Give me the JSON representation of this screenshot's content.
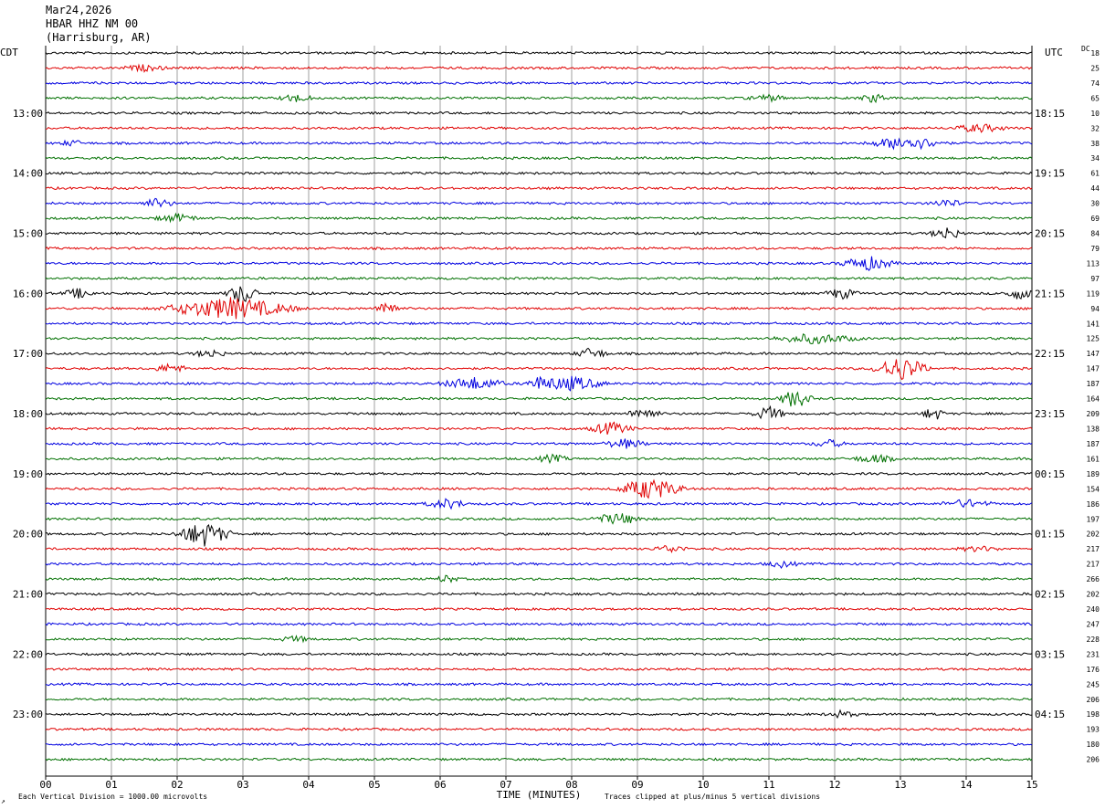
{
  "header": {
    "date": "Mar24,2026",
    "station": "HBAR HHZ NM 00",
    "location": "(Harrisburg, AR)"
  },
  "chart_data": {
    "type": "line",
    "left_axis_label": "CDT",
    "right_axis_label": "UTC",
    "dc_label": "DC",
    "xlabel": "TIME (MINUTES)",
    "x_ticks": [
      "00",
      "01",
      "02",
      "03",
      "04",
      "05",
      "06",
      "07",
      "08",
      "09",
      "10",
      "11",
      "12",
      "13",
      "14",
      "15"
    ],
    "xlim": [
      0,
      15
    ],
    "trace_colors": [
      "#000000",
      "#e00000",
      "#0000e0",
      "#007000"
    ],
    "left_time_labels": [
      "13:00",
      "14:00",
      "15:00",
      "16:00",
      "17:00",
      "18:00",
      "19:00",
      "20:00",
      "21:00",
      "22:00",
      "23:00"
    ],
    "right_time_labels": [
      "18:15",
      "19:15",
      "20:15",
      "21:15",
      "22:15",
      "23:15",
      "00:15",
      "01:15",
      "02:15",
      "03:15",
      "04:15"
    ],
    "dc_offsets": [
      18,
      25,
      74,
      65,
      10,
      32,
      38,
      34,
      61,
      44,
      30,
      69,
      84,
      79,
      113,
      97,
      119,
      94,
      141,
      125,
      147,
      147,
      187,
      164,
      209,
      138,
      187,
      161,
      189,
      154,
      186,
      197,
      202,
      217,
      217,
      266,
      202,
      240,
      247,
      228,
      231,
      176,
      245,
      206,
      198,
      193,
      180,
      206
    ],
    "events": [
      {
        "trace": 1,
        "minute": 1.5,
        "amp": 0.35,
        "dur": 0.4
      },
      {
        "trace": 3,
        "minute": 3.8,
        "amp": 0.5,
        "dur": 0.3
      },
      {
        "trace": 3,
        "minute": 11.0,
        "amp": 0.35,
        "dur": 0.4
      },
      {
        "trace": 3,
        "minute": 12.6,
        "amp": 0.5,
        "dur": 0.3
      },
      {
        "trace": 5,
        "minute": 14.2,
        "amp": 0.5,
        "dur": 0.5
      },
      {
        "trace": 6,
        "minute": 13.1,
        "amp": 0.9,
        "dur": 0.7
      },
      {
        "trace": 6,
        "minute": 0.4,
        "amp": 0.4,
        "dur": 0.2
      },
      {
        "trace": 10,
        "minute": 1.7,
        "amp": 0.6,
        "dur": 0.3
      },
      {
        "trace": 10,
        "minute": 13.7,
        "amp": 0.5,
        "dur": 0.3
      },
      {
        "trace": 11,
        "minute": 2.0,
        "amp": 0.5,
        "dur": 0.4
      },
      {
        "trace": 12,
        "minute": 13.7,
        "amp": 0.8,
        "dur": 0.3
      },
      {
        "trace": 14,
        "minute": 12.5,
        "amp": 0.9,
        "dur": 0.5
      },
      {
        "trace": 16,
        "minute": 0.5,
        "amp": 0.6,
        "dur": 0.3
      },
      {
        "trace": 16,
        "minute": 3.0,
        "amp": 1.3,
        "dur": 0.3
      },
      {
        "trace": 16,
        "minute": 12.1,
        "amp": 0.7,
        "dur": 0.3
      },
      {
        "trace": 16,
        "minute": 14.8,
        "amp": 0.7,
        "dur": 0.3
      },
      {
        "trace": 17,
        "minute": 2.8,
        "amp": 1.4,
        "dur": 1.2
      },
      {
        "trace": 17,
        "minute": 5.2,
        "amp": 1.3,
        "dur": 0.2
      },
      {
        "trace": 19,
        "minute": 11.7,
        "amp": 0.6,
        "dur": 0.8
      },
      {
        "trace": 20,
        "minute": 8.3,
        "amp": 0.7,
        "dur": 0.3
      },
      {
        "trace": 20,
        "minute": 2.5,
        "amp": 0.5,
        "dur": 0.3
      },
      {
        "trace": 21,
        "minute": 13.0,
        "amp": 1.6,
        "dur": 0.5
      },
      {
        "trace": 21,
        "minute": 1.9,
        "amp": 0.6,
        "dur": 0.3
      },
      {
        "trace": 22,
        "minute": 6.5,
        "amp": 0.8,
        "dur": 0.6
      },
      {
        "trace": 22,
        "minute": 8.0,
        "amp": 0.9,
        "dur": 0.6
      },
      {
        "trace": 22,
        "minute": 7.5,
        "amp": 0.7,
        "dur": 0.3
      },
      {
        "trace": 23,
        "minute": 11.4,
        "amp": 1.2,
        "dur": 0.3
      },
      {
        "trace": 24,
        "minute": 9.1,
        "amp": 0.8,
        "dur": 0.3
      },
      {
        "trace": 24,
        "minute": 11.0,
        "amp": 0.9,
        "dur": 0.3
      },
      {
        "trace": 24,
        "minute": 13.5,
        "amp": 0.9,
        "dur": 0.2
      },
      {
        "trace": 25,
        "minute": 8.6,
        "amp": 0.8,
        "dur": 0.4
      },
      {
        "trace": 26,
        "minute": 8.8,
        "amp": 0.6,
        "dur": 0.4
      },
      {
        "trace": 26,
        "minute": 11.9,
        "amp": 0.5,
        "dur": 0.3
      },
      {
        "trace": 27,
        "minute": 7.7,
        "amp": 0.5,
        "dur": 0.3
      },
      {
        "trace": 27,
        "minute": 12.6,
        "amp": 0.5,
        "dur": 0.4
      },
      {
        "trace": 29,
        "minute": 9.2,
        "amp": 1.4,
        "dur": 0.6
      },
      {
        "trace": 30,
        "minute": 6.1,
        "amp": 0.6,
        "dur": 0.4
      },
      {
        "trace": 30,
        "minute": 14.0,
        "amp": 0.5,
        "dur": 0.5
      },
      {
        "trace": 31,
        "minute": 8.7,
        "amp": 0.7,
        "dur": 0.5
      },
      {
        "trace": 32,
        "minute": 2.4,
        "amp": 1.6,
        "dur": 0.5
      },
      {
        "trace": 33,
        "minute": 9.5,
        "amp": 0.5,
        "dur": 0.3
      },
      {
        "trace": 33,
        "minute": 14.2,
        "amp": 0.3,
        "dur": 0.4
      },
      {
        "trace": 34,
        "minute": 11.2,
        "amp": 0.4,
        "dur": 0.3
      },
      {
        "trace": 35,
        "minute": 6.1,
        "amp": 0.5,
        "dur": 0.2
      },
      {
        "trace": 39,
        "minute": 3.8,
        "amp": 0.35,
        "dur": 0.3
      },
      {
        "trace": 44,
        "minute": 12.1,
        "amp": 0.4,
        "dur": 0.3
      }
    ]
  },
  "footer": {
    "scale_note": "Each Vertical Division = 1000.00 microvolts",
    "clip_note": "Traces clipped at plus/minus 5 vertical divisions",
    "corner_mark": "↗"
  }
}
